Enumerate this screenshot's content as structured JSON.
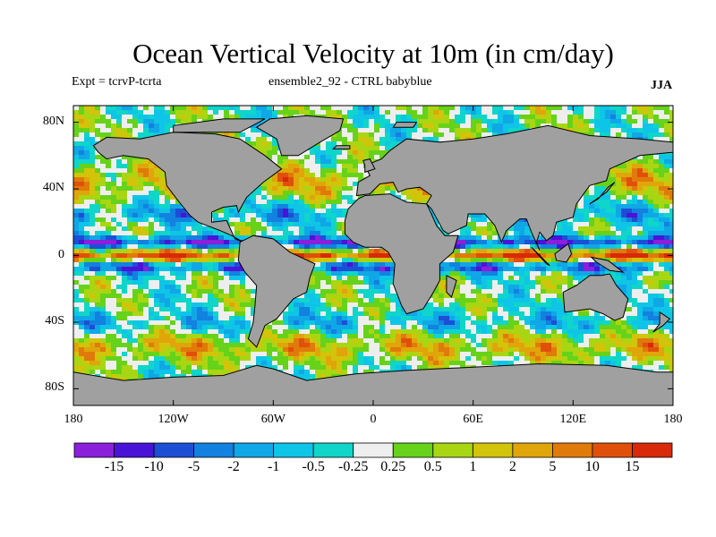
{
  "chart_data": {
    "type": "heatmap",
    "title": "Ocean Vertical Velocity at 10m (in cm/day)",
    "expt": "Expt = tcrvP-tcrta",
    "subtitle": "ensemble2_92 - CTRL babyblue",
    "season": "JJA",
    "xlim": [
      -180,
      180
    ],
    "ylim": [
      -90,
      90
    ],
    "x_ticks": [
      {
        "value": -180,
        "label": "180"
      },
      {
        "value": -120,
        "label": "120W"
      },
      {
        "value": -60,
        "label": "60W"
      },
      {
        "value": 0,
        "label": "0"
      },
      {
        "value": 60,
        "label": "60E"
      },
      {
        "value": 120,
        "label": "120E"
      },
      {
        "value": 180,
        "label": "180"
      }
    ],
    "y_ticks": [
      {
        "value": 80,
        "label": "80N"
      },
      {
        "value": 40,
        "label": "40N"
      },
      {
        "value": 0,
        "label": "0"
      },
      {
        "value": -40,
        "label": "40S"
      },
      {
        "value": -80,
        "label": "80S"
      }
    ],
    "colorbar": {
      "levels": [
        "-15",
        "-10",
        "-5",
        "-2",
        "-1",
        "-0.5",
        "-0.25",
        "0.25",
        "0.5",
        "1",
        "2",
        "5",
        "10",
        "15"
      ],
      "colors": [
        "#8a1fdc",
        "#4a13d8",
        "#1c4fd6",
        "#1281e0",
        "#10a7e6",
        "#0ec5e8",
        "#0fd6c8",
        "#eeeeee",
        "#66d21a",
        "#a8d613",
        "#d2c40a",
        "#e0a50a",
        "#e07a0a",
        "#e0500a",
        "#d8290a"
      ]
    },
    "land_color": "#a0a0a0"
  }
}
